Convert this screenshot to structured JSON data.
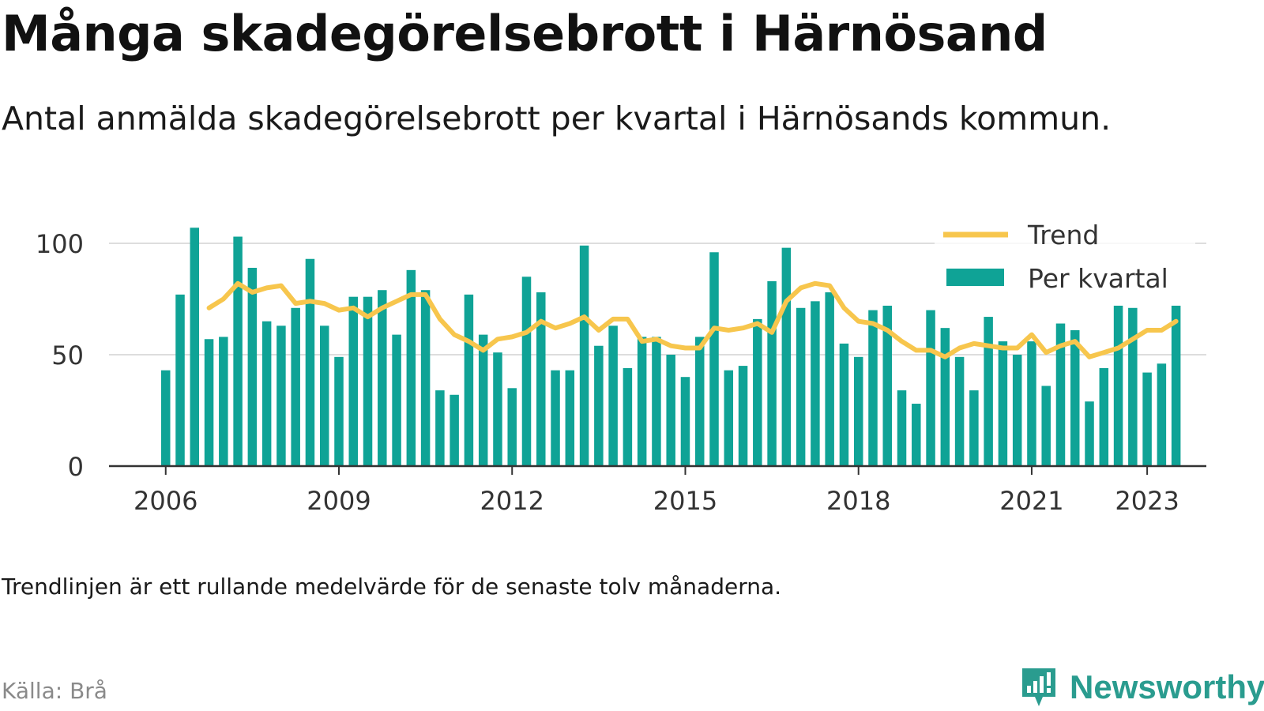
{
  "header": {
    "title": "Många skadegörelsebrott i Härnösand",
    "subtitle": "Antal anmälda skadegörelsebrott per kvartal i Härnösands kommun."
  },
  "footer": {
    "note": "Trendlinjen är ett rullande medelvärde för de senaste tolv månaderna.",
    "source": "Källa: Brå",
    "brand": "Newsworthy",
    "brand_icon": "newsworthy-logo-icon"
  },
  "colors": {
    "bars": "#0fa396",
    "trend": "#f7c64d",
    "axis": "#333333",
    "grid": "#dddddd",
    "brand": "#2a9c8f"
  },
  "chart_data": {
    "type": "bar",
    "ylim": [
      0,
      110
    ],
    "y_ticks": [
      0,
      50,
      100
    ],
    "x_ticks": [
      "2006",
      "2009",
      "2012",
      "2015",
      "2018",
      "2021",
      "2023"
    ],
    "grid": true,
    "legend_position": "top-right",
    "x": [
      "2006 Q1",
      "2006 Q2",
      "2006 Q3",
      "2006 Q4",
      "2007 Q1",
      "2007 Q2",
      "2007 Q3",
      "2007 Q4",
      "2008 Q1",
      "2008 Q2",
      "2008 Q3",
      "2008 Q4",
      "2009 Q1",
      "2009 Q2",
      "2009 Q3",
      "2009 Q4",
      "2010 Q1",
      "2010 Q2",
      "2010 Q3",
      "2010 Q4",
      "2011 Q1",
      "2011 Q2",
      "2011 Q3",
      "2011 Q4",
      "2012 Q1",
      "2012 Q2",
      "2012 Q3",
      "2012 Q4",
      "2013 Q1",
      "2013 Q2",
      "2013 Q3",
      "2013 Q4",
      "2014 Q1",
      "2014 Q2",
      "2014 Q3",
      "2014 Q4",
      "2015 Q1",
      "2015 Q2",
      "2015 Q3",
      "2015 Q4",
      "2016 Q1",
      "2016 Q2",
      "2016 Q3",
      "2016 Q4",
      "2017 Q1",
      "2017 Q2",
      "2017 Q3",
      "2017 Q4",
      "2018 Q1",
      "2018 Q2",
      "2018 Q3",
      "2018 Q4",
      "2019 Q1",
      "2019 Q2",
      "2019 Q3",
      "2019 Q4",
      "2020 Q1",
      "2020 Q2",
      "2020 Q3",
      "2020 Q4",
      "2021 Q1",
      "2021 Q2",
      "2021 Q3",
      "2021 Q4",
      "2022 Q1",
      "2022 Q2",
      "2022 Q3",
      "2022 Q4",
      "2023 Q1",
      "2023 Q2",
      "2023 Q3"
    ],
    "series": [
      {
        "name": "Per kvartal",
        "type": "bar",
        "values": [
          43,
          77,
          107,
          57,
          58,
          103,
          89,
          65,
          63,
          71,
          93,
          63,
          49,
          76,
          76,
          79,
          59,
          88,
          79,
          34,
          32,
          77,
          59,
          51,
          35,
          85,
          78,
          43,
          43,
          99,
          54,
          63,
          44,
          58,
          58,
          50,
          40,
          58,
          96,
          43,
          45,
          66,
          83,
          98,
          71,
          74,
          78,
          55,
          49,
          70,
          72,
          34,
          28,
          70,
          62,
          49,
          34,
          67,
          56,
          50,
          56,
          36,
          64,
          61,
          29,
          44,
          72,
          71,
          42,
          46,
          72
        ]
      },
      {
        "name": "Trend",
        "type": "line",
        "values": [
          null,
          null,
          null,
          71,
          75,
          82,
          78,
          80,
          81,
          73,
          74,
          73,
          70,
          71,
          67,
          71,
          74,
          77,
          77,
          66,
          59,
          56,
          52,
          57,
          58,
          60,
          65,
          62,
          64,
          67,
          61,
          66,
          66,
          56,
          57,
          54,
          53,
          53,
          62,
          61,
          62,
          64,
          60,
          74,
          80,
          82,
          81,
          71,
          65,
          64,
          61,
          56,
          52,
          52,
          49,
          53,
          55,
          54,
          53,
          53,
          59,
          51,
          54,
          56,
          49,
          51,
          53,
          57,
          61,
          61,
          65
        ]
      }
    ]
  }
}
